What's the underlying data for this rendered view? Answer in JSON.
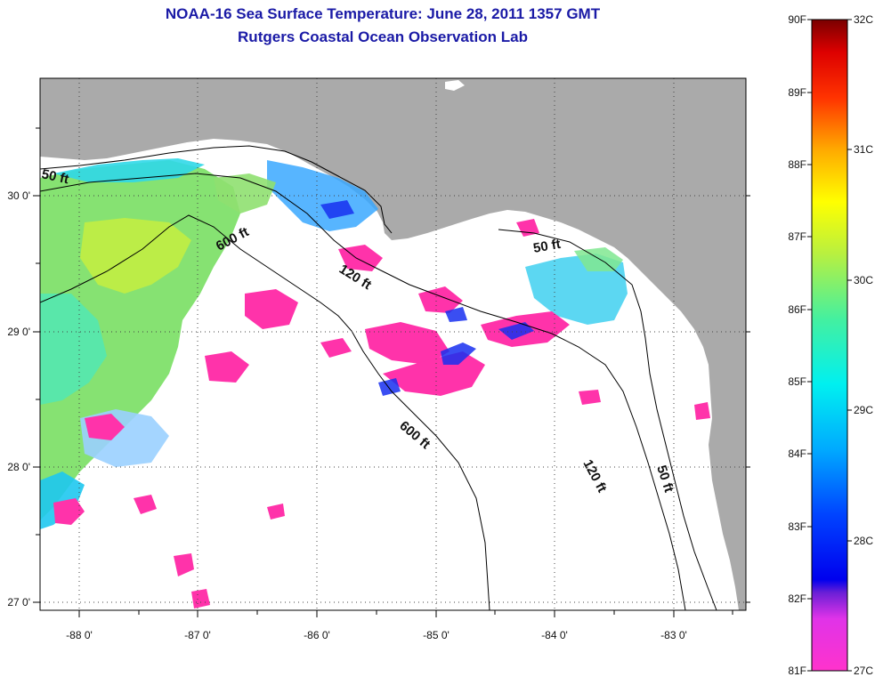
{
  "title": "NOAA-16 Sea Surface Temperature:  June 28, 2011 1357 GMT",
  "subtitle": "Rutgers Coastal Ocean Observation Lab",
  "longitude_ticks": [
    "-88 0'",
    "-87 0'",
    "-86 0'",
    "-85 0'",
    "-84 0'",
    "-83 0'"
  ],
  "latitude_ticks": [
    "30 0'",
    "29 0'",
    "28 0'",
    "27 0'"
  ],
  "contour_labels": [
    "50 ft",
    "600 ft",
    "120 ft",
    "50 ft",
    "600 ft",
    "120 ft",
    "50 ft"
  ],
  "colorbar": {
    "fahrenheit": [
      "90F",
      "89F",
      "88F",
      "87F",
      "86F",
      "85F",
      "84F",
      "83F",
      "82F",
      "81F"
    ],
    "celsius": [
      "32C",
      "31C",
      "30C",
      "29C",
      "28C",
      "27C"
    ]
  },
  "colors": {
    "land": "#aaaaaa",
    "cloud": "#ffffff",
    "title": "#1a1aa6"
  }
}
